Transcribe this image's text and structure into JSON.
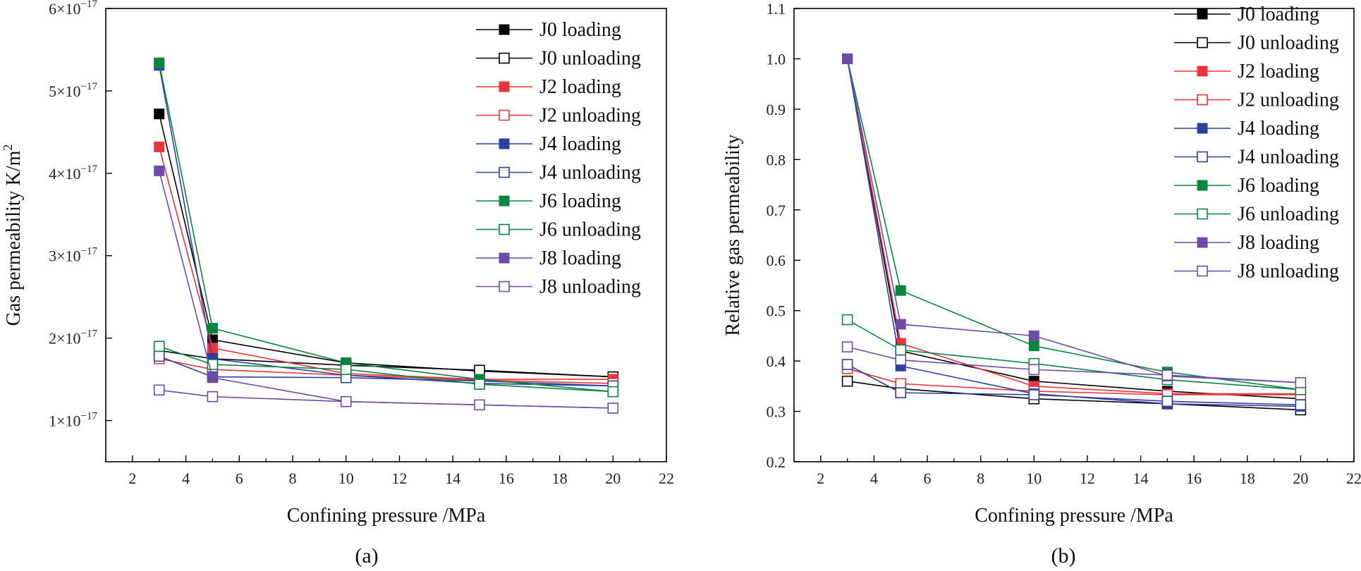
{
  "colors": {
    "J0": "#000000",
    "J2": "#e8353b",
    "J4": "#2e3f9e",
    "J6": "#0a8540",
    "J8": "#6d4ca8"
  },
  "chart_data": [
    {
      "panel_label": "(a)",
      "type": "line",
      "xlabel": "Confining pressure /MPa",
      "ylabel": "Gas permeability K/m",
      "ylabel_superscript": "2",
      "x_ticks": [
        2,
        4,
        6,
        8,
        10,
        12,
        14,
        16,
        18,
        20,
        22
      ],
      "xlim": [
        1,
        22
      ],
      "y_ticks": [
        {
          "value": 1e-17,
          "mantissa": "1×10",
          "exp": "−17"
        },
        {
          "value": 2e-17,
          "mantissa": "2×10",
          "exp": "−17"
        },
        {
          "value": 3e-17,
          "mantissa": "3×10",
          "exp": "−17"
        },
        {
          "value": 4e-17,
          "mantissa": "4×10",
          "exp": "−17"
        },
        {
          "value": 5e-17,
          "mantissa": "5×10",
          "exp": "−17"
        },
        {
          "value": 6e-17,
          "mantissa": "6×10",
          "exp": "−17"
        }
      ],
      "ylim": [
        5e-18,
        6e-17
      ],
      "x": [
        3,
        5,
        10,
        15,
        20
      ],
      "series": [
        {
          "name": "J0 loading",
          "color_key": "J0",
          "filled": true,
          "values": [
            4.72e-17,
            1.98e-17,
            1.7e-17,
            1.6e-17,
            1.53e-17
          ]
        },
        {
          "name": "J0 unloading",
          "color_key": "J0",
          "filled": false,
          "values": [
            1.85e-17,
            1.75e-17,
            1.67e-17,
            1.61e-17,
            1.53e-17
          ]
        },
        {
          "name": "J2 loading",
          "color_key": "J2",
          "filled": true,
          "values": [
            4.32e-17,
            1.88e-17,
            1.57e-17,
            1.5e-17,
            1.5e-17
          ]
        },
        {
          "name": "J2 unloading",
          "color_key": "J2",
          "filled": false,
          "values": [
            1.75e-17,
            1.62e-17,
            1.55e-17,
            1.49e-17,
            1.45e-17
          ]
        },
        {
          "name": "J4 loading",
          "color_key": "J4",
          "filled": true,
          "values": [
            5.31e-17,
            1.75e-17,
            1.55e-17,
            1.45e-17,
            1.42e-17
          ]
        },
        {
          "name": "J4 unloading",
          "color_key": "J4",
          "filled": false,
          "values": [
            1.78e-17,
            1.53e-17,
            1.52e-17,
            1.48e-17,
            1.42e-17
          ]
        },
        {
          "name": "J6 loading",
          "color_key": "J6",
          "filled": true,
          "values": [
            5.34e-17,
            2.12e-17,
            1.7e-17,
            1.5e-17,
            1.35e-17
          ]
        },
        {
          "name": "J6 unloading",
          "color_key": "J6",
          "filled": false,
          "values": [
            1.9e-17,
            1.68e-17,
            1.62e-17,
            1.44e-17,
            1.35e-17
          ]
        },
        {
          "name": "J8 loading",
          "color_key": "J8",
          "filled": true,
          "values": [
            4.03e-17,
            1.52e-17,
            1.23e-17,
            1.19e-17,
            1.15e-17
          ]
        },
        {
          "name": "J8 unloading",
          "color_key": "J8",
          "filled": false,
          "values": [
            1.37e-17,
            1.29e-17,
            1.23e-17,
            1.19e-17,
            1.15e-17
          ]
        }
      ]
    },
    {
      "panel_label": "(b)",
      "type": "line",
      "xlabel": "Confining pressure /MPa",
      "ylabel": "Relative gas permeability",
      "x_ticks": [
        2,
        4,
        6,
        8,
        10,
        12,
        14,
        16,
        18,
        20,
        22
      ],
      "xlim": [
        1,
        22
      ],
      "y_ticks": [
        "0.2",
        "0.3",
        "0.4",
        "0.5",
        "0.6",
        "0.7",
        "0.8",
        "0.9",
        "1.0",
        "1.1"
      ],
      "ylim": [
        0.2,
        1.1
      ],
      "x": [
        3,
        5,
        10,
        15,
        20
      ],
      "series": [
        {
          "name": "J0 loading",
          "color_key": "J0",
          "filled": true,
          "values": [
            1.0,
            0.42,
            0.36,
            0.34,
            0.325
          ]
        },
        {
          "name": "J0 unloading",
          "color_key": "J0",
          "filled": false,
          "values": [
            0.36,
            0.345,
            0.325,
            0.315,
            0.303
          ]
        },
        {
          "name": "J2 loading",
          "color_key": "J2",
          "filled": true,
          "values": [
            1.0,
            0.435,
            0.35,
            0.335,
            0.335
          ]
        },
        {
          "name": "J2 unloading",
          "color_key": "J2",
          "filled": false,
          "values": [
            0.385,
            0.355,
            0.34,
            0.333,
            0.333
          ]
        },
        {
          "name": "J4 loading",
          "color_key": "J4",
          "filled": true,
          "values": [
            1.0,
            0.39,
            0.335,
            0.315,
            0.31
          ]
        },
        {
          "name": "J4 unloading",
          "color_key": "J4",
          "filled": false,
          "values": [
            0.393,
            0.337,
            0.333,
            0.32,
            0.313
          ]
        },
        {
          "name": "J6 loading",
          "color_key": "J6",
          "filled": true,
          "values": [
            1.0,
            0.54,
            0.43,
            0.378,
            0.343
          ]
        },
        {
          "name": "J6 unloading",
          "color_key": "J6",
          "filled": false,
          "values": [
            0.482,
            0.422,
            0.395,
            0.363,
            0.343
          ]
        },
        {
          "name": "J8 loading",
          "color_key": "J8",
          "filled": true,
          "values": [
            1.0,
            0.473,
            0.45,
            0.37,
            0.357
          ]
        },
        {
          "name": "J8 unloading",
          "color_key": "J8",
          "filled": false,
          "values": [
            0.428,
            0.402,
            0.383,
            0.372,
            0.357
          ]
        }
      ]
    }
  ]
}
